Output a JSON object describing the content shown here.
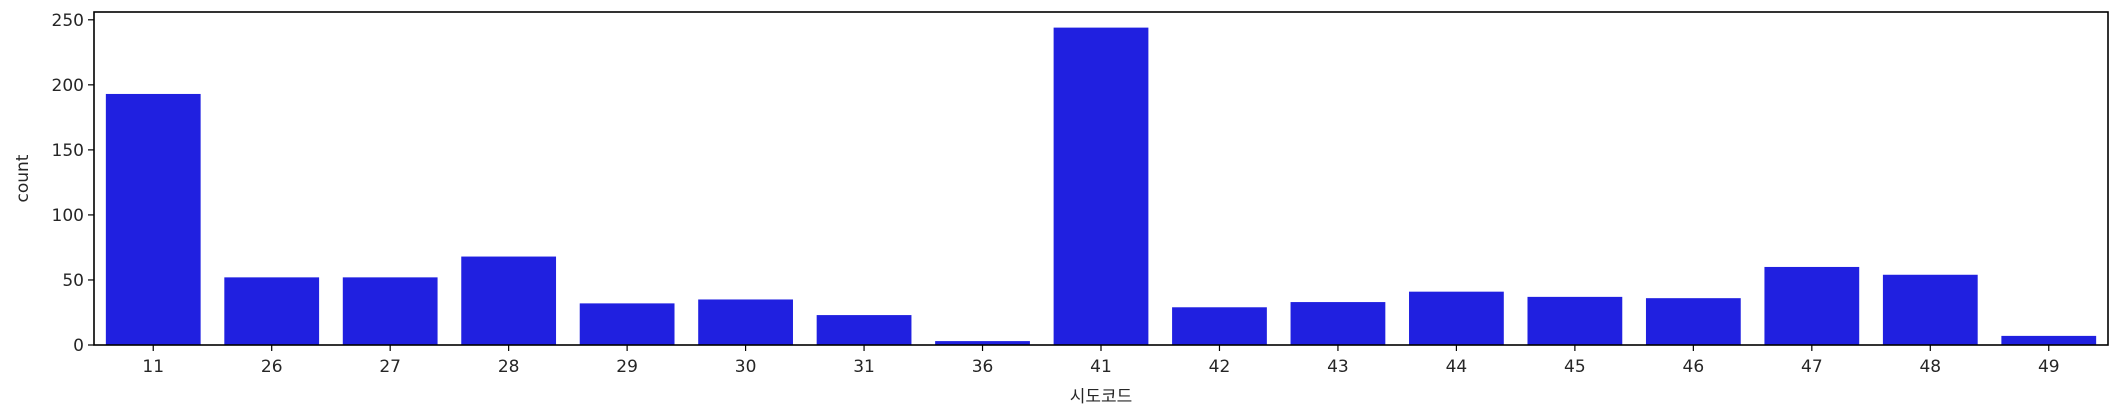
{
  "chart_data": {
    "type": "bar",
    "categories": [
      "11",
      "26",
      "27",
      "28",
      "29",
      "30",
      "31",
      "36",
      "41",
      "42",
      "43",
      "44",
      "45",
      "46",
      "47",
      "48",
      "49"
    ],
    "values": [
      193,
      52,
      52,
      68,
      32,
      35,
      23,
      3,
      244,
      29,
      33,
      41,
      37,
      36,
      60,
      54,
      7
    ],
    "xlabel": "시도코드",
    "ylabel": "count",
    "ylim": [
      0,
      256
    ],
    "yticks": [
      0,
      50,
      100,
      150,
      200,
      250
    ],
    "bar_color": "#2020e0",
    "grid": false,
    "legend": "none"
  }
}
